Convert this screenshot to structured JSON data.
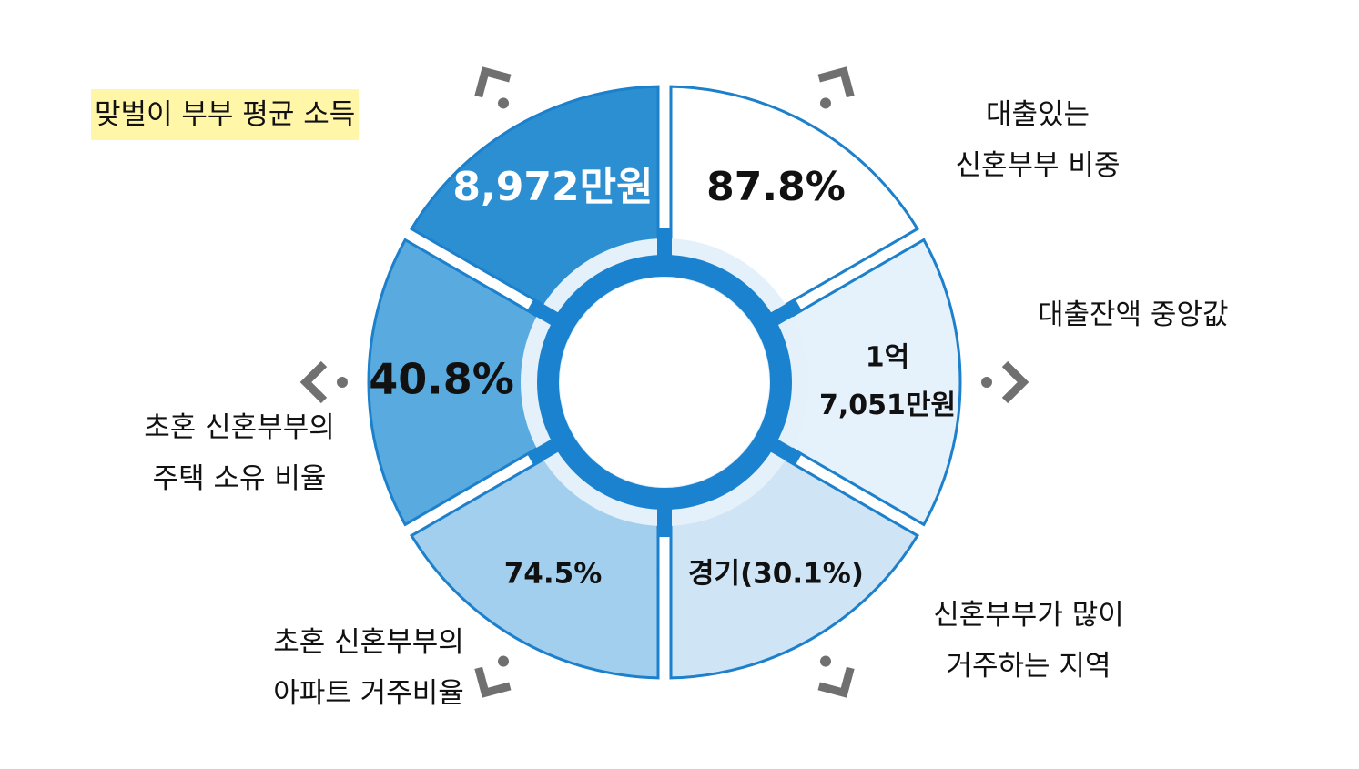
{
  "colors": {
    "outline": "#1c80cc",
    "hub": "#1a82cf",
    "halo": "#e4f0fa",
    "arrow": "#707070",
    "highlight": "#fff6a8"
  },
  "segments": [
    {
      "id": "dual-income",
      "value_text": "8,972만원",
      "fill": "#2b8fd2",
      "text_color": "#ffffff",
      "label_lines": [
        "맞벌이 부부 평균 소득"
      ],
      "label_highlighted": true
    },
    {
      "id": "loan-share",
      "value_text": "87.8%",
      "fill": "#ffffff",
      "text_color": "#111111",
      "label_lines": [
        "대출있는",
        "신혼부부 비중"
      ],
      "label_highlighted": false
    },
    {
      "id": "loan-median",
      "value_lines": [
        "1억",
        "7,051만원"
      ],
      "fill": "#e5f1fb",
      "text_color": "#111111",
      "label_lines": [
        "대출잔액 중앙값"
      ],
      "label_highlighted": false
    },
    {
      "id": "region",
      "value_text": "경기(30.1%)",
      "fill": "#cfe4f5",
      "text_color": "#111111",
      "label_lines": [
        "신혼부부가 많이",
        "거주하는 지역"
      ],
      "label_highlighted": false
    },
    {
      "id": "apartment",
      "value_text": "74.5%",
      "fill": "#a2cfee",
      "text_color": "#111111",
      "label_lines": [
        "초혼 신혼부부의",
        "아파트 거주비율"
      ],
      "label_highlighted": false
    },
    {
      "id": "home-ownership",
      "value_text": "40.8%",
      "fill": "#58aadf",
      "text_color": "#111111",
      "label_lines": [
        "초혼 신혼부부의",
        "주택 소유 비율"
      ],
      "label_highlighted": false
    }
  ]
}
